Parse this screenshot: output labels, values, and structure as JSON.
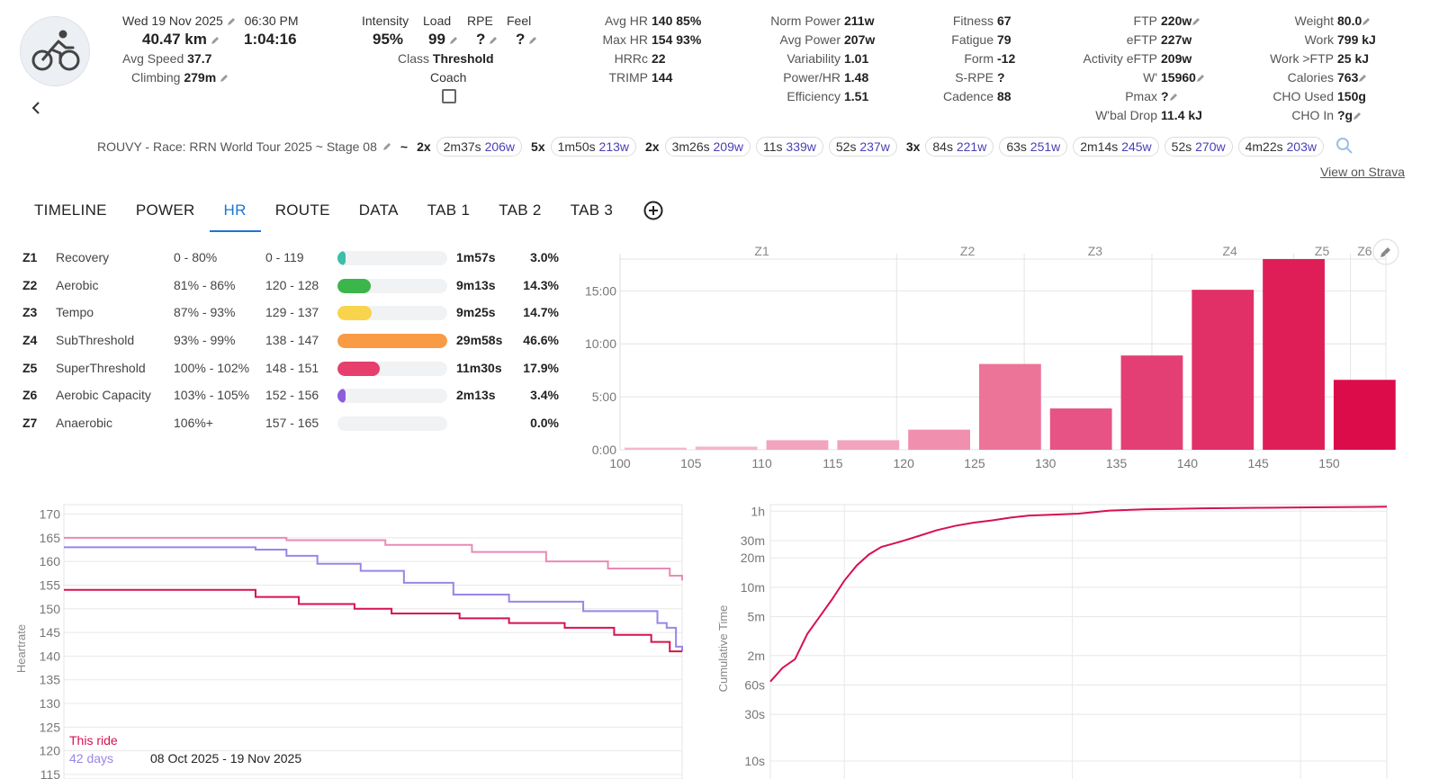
{
  "activity": {
    "date": "Wed 19 Nov 2025",
    "time": "06:30 PM",
    "distance": "40.47 km",
    "duration": "1:04:16",
    "avg_speed_label": "Avg Speed",
    "avg_speed": "37.7",
    "climbing_label": "Climbing",
    "climbing": "279m",
    "sport_icon": "bike-icon"
  },
  "load": {
    "intensity_label": "Intensity",
    "intensity": "95%",
    "load_label": "Load",
    "load": "99",
    "rpe_label": "RPE",
    "rpe": "?",
    "feel_label": "Feel",
    "feel": "?",
    "class_label": "Class",
    "class": "Threshold",
    "coach_label": "Coach"
  },
  "hr_stats": {
    "avg_hr_label": "Avg HR",
    "avg_hr": "140",
    "avg_hr_pct": "85%",
    "max_hr_label": "Max HR",
    "max_hr": "154",
    "max_hr_pct": "93%",
    "hrrc_label": "HRRc",
    "hrrc": "22",
    "trimp_label": "TRIMP",
    "trimp": "144"
  },
  "power_stats": {
    "norm_power_label": "Norm Power",
    "norm_power": "211w",
    "avg_power_label": "Avg Power",
    "avg_power": "207w",
    "variability_label": "Variability",
    "variability": "1.01",
    "power_hr_label": "Power/HR",
    "power_hr": "1.48",
    "efficiency_label": "Efficiency",
    "efficiency": "1.51"
  },
  "fitness": {
    "fitness_label": "Fitness",
    "fitness": "67",
    "fatigue_label": "Fatigue",
    "fatigue": "79",
    "form_label": "Form",
    "form": "-12",
    "srpe_label": "S-RPE",
    "srpe": "?",
    "cadence_label": "Cadence",
    "cadence": "88"
  },
  "ftp": {
    "ftp_label": "FTP",
    "ftp": "220w",
    "eftp_label": "eFTP",
    "eftp": "227w",
    "activity_eftp_label": "Activity eFTP",
    "activity_eftp": "209w",
    "wprime_label": "W'",
    "wprime": "15960",
    "pmax_label": "Pmax",
    "pmax": "?",
    "wbal_label": "W'bal Drop",
    "wbal": "11.4 kJ"
  },
  "body": {
    "weight_label": "Weight",
    "weight": "80.0",
    "work_label": "Work",
    "work": "799 kJ",
    "work_ftp_label": "Work >FTP",
    "work_ftp": "25 kJ",
    "calories_label": "Calories",
    "calories": "763",
    "cho_used_label": "CHO Used",
    "cho_used": "150g",
    "cho_in_label": "CHO In",
    "cho_in": "?g"
  },
  "intervals": {
    "title": "ROUVY - Race: RRN World Tour 2025 ~ Stage 08",
    "tilde": "~",
    "items": [
      {
        "mult": "2x",
        "dur": "2m37s",
        "watts": "206w"
      },
      {
        "mult": "5x",
        "dur": "1m50s",
        "watts": "213w"
      },
      {
        "mult": "2x",
        "dur": "3m26s",
        "watts": "209w"
      },
      {
        "mult": "",
        "dur": "11s",
        "watts": "339w"
      },
      {
        "mult": "",
        "dur": "52s",
        "watts": "237w"
      },
      {
        "mult": "3x",
        "dur": "84s",
        "watts": "221w"
      },
      {
        "mult": "",
        "dur": "63s",
        "watts": "251w"
      },
      {
        "mult": "",
        "dur": "2m14s",
        "watts": "245w"
      },
      {
        "mult": "",
        "dur": "52s",
        "watts": "270w"
      },
      {
        "mult": "",
        "dur": "4m22s",
        "watts": "203w"
      }
    ],
    "strava_link": "View on Strava"
  },
  "tabs": [
    {
      "label": "TIMELINE",
      "active": false
    },
    {
      "label": "POWER",
      "active": false
    },
    {
      "label": "HR",
      "active": true
    },
    {
      "label": "ROUTE",
      "active": false
    },
    {
      "label": "DATA",
      "active": false
    },
    {
      "label": "TAB 1",
      "active": false
    },
    {
      "label": "TAB 2",
      "active": false
    },
    {
      "label": "TAB 3",
      "active": false
    }
  ],
  "zones": [
    {
      "id": "Z1",
      "name": "Recovery",
      "pct": "0 - 80%",
      "bpm": "0 - 119",
      "time": "1m57s",
      "share": "3.0%",
      "fraction": 0.03,
      "color": "#3dbea8"
    },
    {
      "id": "Z2",
      "name": "Aerobic",
      "pct": "81% - 86%",
      "bpm": "120 - 128",
      "time": "9m13s",
      "share": "14.3%",
      "fraction": 0.143,
      "color": "#3cb54a"
    },
    {
      "id": "Z3",
      "name": "Tempo",
      "pct": "87% - 93%",
      "bpm": "129 - 137",
      "time": "9m25s",
      "share": "14.7%",
      "fraction": 0.147,
      "color": "#f7d44c"
    },
    {
      "id": "Z4",
      "name": "SubThreshold",
      "pct": "93% - 99%",
      "bpm": "138 - 147",
      "time": "29m58s",
      "share": "46.6%",
      "fraction": 0.466,
      "color": "#f99a45"
    },
    {
      "id": "Z5",
      "name": "SuperThreshold",
      "pct": "100% - 102%",
      "bpm": "148 - 151",
      "time": "11m30s",
      "share": "17.9%",
      "fraction": 0.179,
      "color": "#e63e6d"
    },
    {
      "id": "Z6",
      "name": "Aerobic Capacity",
      "pct": "103% - 105%",
      "bpm": "152 - 156",
      "time": "2m13s",
      "share": "3.4%",
      "fraction": 0.034,
      "color": "#8c5cdc"
    },
    {
      "id": "Z7",
      "name": "Anaerobic",
      "pct": "106%+",
      "bpm": "157 - 165",
      "time": "",
      "share": "0.0%",
      "fraction": 0.0,
      "color": "#cfd3d8"
    }
  ],
  "chart_data": [
    {
      "type": "bar",
      "zone_labels": [
        {
          "label": "Z1",
          "at": 110
        },
        {
          "label": "Z2",
          "at": 124.5
        },
        {
          "label": "Z3",
          "at": 133.5
        },
        {
          "label": "Z4",
          "at": 143
        },
        {
          "label": "Z5",
          "at": 149.5
        },
        {
          "label": "Z6",
          "at": 152.5
        }
      ],
      "zone_boundaries": [
        119.5,
        128.5,
        137.5,
        147.5,
        151.5
      ],
      "xlim": [
        100,
        154
      ],
      "xticks": [
        100,
        105,
        110,
        115,
        120,
        125,
        130,
        135,
        140,
        145,
        150
      ],
      "ylim": [
        0,
        18
      ],
      "yticks": [
        {
          "v": 0,
          "label": "0:00"
        },
        {
          "v": 5,
          "label": "5:00"
        },
        {
          "v": 10,
          "label": "10:00"
        },
        {
          "v": 15,
          "label": "15:00"
        }
      ],
      "bins": [
        100,
        105,
        110,
        115,
        120,
        125,
        130,
        135,
        140,
        145,
        150
      ],
      "values": [
        0.2,
        0.3,
        0.9,
        0.9,
        1.9,
        8.1,
        3.9,
        8.9,
        15.1,
        18.0,
        6.6
      ],
      "colors": [
        "#f4b6c9",
        "#f4b6c9",
        "#f2a4bd",
        "#f2a4bd",
        "#f08fae",
        "#ec7499",
        "#e65384",
        "#e43f75",
        "#e12f67",
        "#df1e58",
        "#dc0c4a"
      ]
    },
    {
      "type": "line",
      "ylabel": "Heartrate",
      "ylim": [
        115,
        172
      ],
      "yticks": [
        115,
        120,
        125,
        130,
        135,
        140,
        145,
        150,
        155,
        160,
        165,
        170
      ],
      "xlim": [
        0,
        1
      ],
      "legend": [
        {
          "name": "This ride",
          "color": "#d6124f"
        },
        {
          "name": "42 days",
          "color": "#9a85e6",
          "range": "08 Oct 2025 - 19 Nov 2025"
        }
      ],
      "series": [
        {
          "name": "pink",
          "color": "#e78bb4",
          "x": [
            0,
            0.36,
            0.52,
            0.66,
            0.78,
            0.88,
            0.98,
            1
          ],
          "y": [
            165,
            164.5,
            163.5,
            162,
            160,
            158.5,
            157,
            156
          ]
        },
        {
          "name": "42 days",
          "color": "#9a85e6",
          "x": [
            0,
            0.17,
            0.31,
            0.36,
            0.41,
            0.48,
            0.55,
            0.63,
            0.72,
            0.84,
            0.96,
            0.975,
            0.99,
            1
          ],
          "y": [
            163,
            163,
            162.5,
            161.2,
            159.5,
            158,
            155.5,
            153,
            151.5,
            149.5,
            147,
            146,
            142,
            141
          ]
        },
        {
          "name": "This ride",
          "color": "#d6124f",
          "x": [
            0,
            0.19,
            0.31,
            0.38,
            0.47,
            0.53,
            0.64,
            0.72,
            0.81,
            0.89,
            0.95,
            0.98,
            1
          ],
          "y": [
            154,
            154,
            152.5,
            151,
            150,
            149,
            148,
            147,
            146,
            144.5,
            143,
            141,
            141
          ]
        }
      ]
    },
    {
      "type": "line",
      "ylabel": "Cumulative Time",
      "yscale": "log",
      "yticks": [
        {
          "v": 10,
          "label": "10s"
        },
        {
          "v": 30,
          "label": "30s"
        },
        {
          "v": 60,
          "label": "60s"
        },
        {
          "v": 120,
          "label": "2m"
        },
        {
          "v": 300,
          "label": "5m"
        },
        {
          "v": 600,
          "label": "10m"
        },
        {
          "v": 1200,
          "label": "20m"
        },
        {
          "v": 1800,
          "label": "30m"
        },
        {
          "v": 3600,
          "label": "1h"
        }
      ],
      "ylim": [
        10,
        4200
      ],
      "xlim": [
        0,
        1
      ],
      "series": [
        {
          "name": "This ride",
          "color": "#d6124f",
          "x": [
            0,
            0.02,
            0.04,
            0.06,
            0.08,
            0.1,
            0.12,
            0.14,
            0.16,
            0.18,
            0.21,
            0.24,
            0.27,
            0.3,
            0.33,
            0.36,
            0.39,
            0.42,
            0.45,
            0.5,
            0.52,
            0.55,
            0.6,
            0.65,
            0.7,
            0.8,
            0.9,
            1
          ],
          "y": [
            65,
            90,
            110,
            200,
            300,
            450,
            700,
            1000,
            1300,
            1550,
            1750,
            2000,
            2300,
            2550,
            2750,
            2900,
            3100,
            3250,
            3300,
            3400,
            3500,
            3650,
            3750,
            3800,
            3850,
            3900,
            3950,
            4000
          ]
        }
      ]
    }
  ]
}
